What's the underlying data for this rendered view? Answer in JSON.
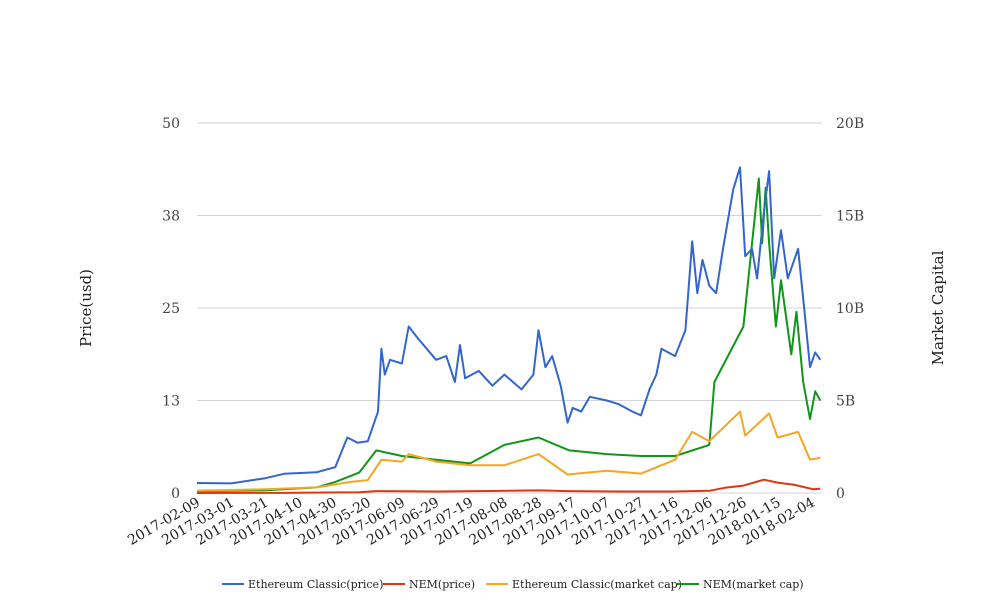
{
  "chart_data": {
    "type": "line",
    "title": "",
    "ylabel_left": "Price(usd)",
    "ylabel_right": "Market Capital",
    "y_left": {
      "range": [
        0,
        50
      ],
      "ticks": [
        "0",
        "13",
        "25",
        "38",
        "50"
      ]
    },
    "y_right": {
      "range": [
        0,
        20000000000
      ],
      "ticks": [
        "0",
        "5B",
        "10B",
        "15B",
        "20B"
      ]
    },
    "x_range": [
      "2017-02-09",
      "2018-02-10"
    ],
    "x_ticks": [
      "2017-02-09",
      "2017-03-01",
      "2017-03-21",
      "2017-04-10",
      "2017-04-30",
      "2017-05-20",
      "2017-06-09",
      "2017-06-29",
      "2017-07-19",
      "2017-08-08",
      "2017-08-28",
      "2017-09-17",
      "2017-10-07",
      "2017-10-27",
      "2017-11-16",
      "2017-12-06",
      "2017-12-26",
      "2018-01-15",
      "2018-02-04"
    ],
    "legend_position": "bottom",
    "grid": "horizontal",
    "series": [
      {
        "name": "Ethereum Classic(price)",
        "axis": "left",
        "color": "#3366cc",
        "points": [
          [
            "2017-02-09",
            1.35
          ],
          [
            "2017-03-01",
            1.3
          ],
          [
            "2017-03-21",
            2.0
          ],
          [
            "2017-04-01",
            2.6
          ],
          [
            "2017-04-20",
            2.8
          ],
          [
            "2017-05-01",
            3.5
          ],
          [
            "2017-05-08",
            7.5
          ],
          [
            "2017-05-14",
            6.8
          ],
          [
            "2017-05-20",
            7.0
          ],
          [
            "2017-05-26",
            11
          ],
          [
            "2017-05-28",
            19.5
          ],
          [
            "2017-05-30",
            16
          ],
          [
            "2017-06-02",
            18
          ],
          [
            "2017-06-09",
            17.5
          ],
          [
            "2017-06-13",
            22.5
          ],
          [
            "2017-06-18",
            21
          ],
          [
            "2017-06-29",
            18
          ],
          [
            "2017-07-05",
            18.5
          ],
          [
            "2017-07-10",
            15
          ],
          [
            "2017-07-13",
            20
          ],
          [
            "2017-07-16",
            15.5
          ],
          [
            "2017-07-24",
            16.5
          ],
          [
            "2017-08-01",
            14.5
          ],
          [
            "2017-08-08",
            16
          ],
          [
            "2017-08-18",
            14
          ],
          [
            "2017-08-25",
            16
          ],
          [
            "2017-08-28",
            22
          ],
          [
            "2017-09-01",
            17
          ],
          [
            "2017-09-05",
            18.5
          ],
          [
            "2017-09-10",
            14.5
          ],
          [
            "2017-09-14",
            9.5
          ],
          [
            "2017-09-17",
            11.5
          ],
          [
            "2017-09-22",
            11
          ],
          [
            "2017-09-27",
            13
          ],
          [
            "2017-10-07",
            12.5
          ],
          [
            "2017-10-14",
            12
          ],
          [
            "2017-10-22",
            11
          ],
          [
            "2017-10-27",
            10.5
          ],
          [
            "2017-11-01",
            14
          ],
          [
            "2017-11-05",
            16
          ],
          [
            "2017-11-08",
            19.5
          ],
          [
            "2017-11-16",
            18.5
          ],
          [
            "2017-11-22",
            22
          ],
          [
            "2017-11-26",
            34
          ],
          [
            "2017-11-29",
            27
          ],
          [
            "2017-12-02",
            31.5
          ],
          [
            "2017-12-06",
            28
          ],
          [
            "2017-12-10",
            27
          ],
          [
            "2017-12-14",
            33
          ],
          [
            "2017-12-20",
            41
          ],
          [
            "2017-12-24",
            44
          ],
          [
            "2017-12-27",
            32
          ],
          [
            "2017-12-31",
            33
          ],
          [
            "2018-01-03",
            29
          ],
          [
            "2018-01-07",
            38
          ],
          [
            "2018-01-10",
            43.5
          ],
          [
            "2018-01-13",
            29
          ],
          [
            "2018-01-17",
            35.5
          ],
          [
            "2018-01-21",
            29
          ],
          [
            "2018-01-27",
            33
          ],
          [
            "2018-01-31",
            24
          ],
          [
            "2018-02-03",
            17
          ],
          [
            "2018-02-06",
            19
          ],
          [
            "2018-02-09",
            18
          ]
        ]
      },
      {
        "name": "NEM(price)",
        "axis": "left",
        "color": "#dc3912",
        "points": [
          [
            "2017-02-09",
            0.005
          ],
          [
            "2017-04-01",
            0.01
          ],
          [
            "2017-05-15",
            0.1
          ],
          [
            "2017-05-25",
            0.25
          ],
          [
            "2017-07-01",
            0.2
          ],
          [
            "2017-08-28",
            0.35
          ],
          [
            "2017-09-15",
            0.25
          ],
          [
            "2017-10-15",
            0.2
          ],
          [
            "2017-11-15",
            0.2
          ],
          [
            "2017-12-06",
            0.3
          ],
          [
            "2017-12-15",
            0.7
          ],
          [
            "2017-12-26",
            1.0
          ],
          [
            "2018-01-07",
            1.8
          ],
          [
            "2018-01-15",
            1.4
          ],
          [
            "2018-01-25",
            1.1
          ],
          [
            "2018-02-05",
            0.5
          ],
          [
            "2018-02-09",
            0.6
          ]
        ]
      },
      {
        "name": "Ethereum Classic(market cap)",
        "axis": "right",
        "color": "#f5a623",
        "points": [
          [
            "2017-02-09",
            130000000
          ],
          [
            "2017-03-21",
            200000000
          ],
          [
            "2017-04-20",
            300000000
          ],
          [
            "2017-05-10",
            600000000
          ],
          [
            "2017-05-20",
            700000000
          ],
          [
            "2017-05-28",
            1800000000
          ],
          [
            "2017-06-09",
            1700000000
          ],
          [
            "2017-06-13",
            2100000000
          ],
          [
            "2017-06-29",
            1700000000
          ],
          [
            "2017-07-19",
            1500000000
          ],
          [
            "2017-08-08",
            1500000000
          ],
          [
            "2017-08-28",
            2100000000
          ],
          [
            "2017-09-14",
            1000000000
          ],
          [
            "2017-10-07",
            1200000000
          ],
          [
            "2017-10-27",
            1050000000
          ],
          [
            "2017-11-16",
            1800000000
          ],
          [
            "2017-11-26",
            3300000000
          ],
          [
            "2017-12-06",
            2800000000
          ],
          [
            "2017-12-24",
            4400000000
          ],
          [
            "2017-12-27",
            3100000000
          ],
          [
            "2018-01-10",
            4300000000
          ],
          [
            "2018-01-15",
            3000000000
          ],
          [
            "2018-01-27",
            3300000000
          ],
          [
            "2018-02-03",
            1800000000
          ],
          [
            "2018-02-09",
            1900000000
          ]
        ]
      },
      {
        "name": "NEM(market cap)",
        "axis": "right",
        "color": "#109618",
        "points": [
          [
            "2017-02-09",
            100000000
          ],
          [
            "2017-03-21",
            150000000
          ],
          [
            "2017-04-20",
            300000000
          ],
          [
            "2017-05-01",
            600000000
          ],
          [
            "2017-05-15",
            1100000000
          ],
          [
            "2017-05-25",
            2300000000
          ],
          [
            "2017-06-09",
            2000000000
          ],
          [
            "2017-06-29",
            1800000000
          ],
          [
            "2017-07-19",
            1600000000
          ],
          [
            "2017-08-08",
            2600000000
          ],
          [
            "2017-08-28",
            3000000000
          ],
          [
            "2017-09-15",
            2300000000
          ],
          [
            "2017-10-07",
            2100000000
          ],
          [
            "2017-10-27",
            2000000000
          ],
          [
            "2017-11-16",
            2000000000
          ],
          [
            "2017-12-06",
            2600000000
          ],
          [
            "2017-12-09",
            6000000000
          ],
          [
            "2017-12-26",
            9000000000
          ],
          [
            "2018-01-04",
            17000000000
          ],
          [
            "2018-01-06",
            13500000000
          ],
          [
            "2018-01-08",
            16500000000
          ],
          [
            "2018-01-10",
            13500000000
          ],
          [
            "2018-01-14",
            9000000000
          ],
          [
            "2018-01-17",
            11500000000
          ],
          [
            "2018-01-23",
            7500000000
          ],
          [
            "2018-01-26",
            9800000000
          ],
          [
            "2018-01-30",
            6000000000
          ],
          [
            "2018-02-03",
            4000000000
          ],
          [
            "2018-02-06",
            5500000000
          ],
          [
            "2018-02-09",
            5000000000
          ]
        ]
      }
    ]
  }
}
